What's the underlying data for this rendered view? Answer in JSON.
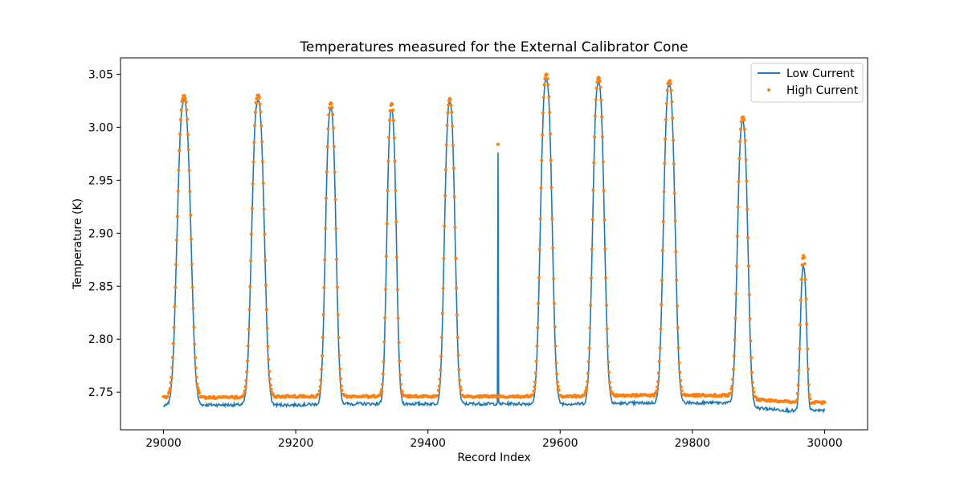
{
  "chart_data": {
    "type": "line",
    "title": "Temperatures measured for the External Calibrator Cone",
    "xlabel": "Record Index",
    "ylabel": "Temperature (K)",
    "xlim": [
      28935,
      30065
    ],
    "ylim": [
      2.7145,
      3.0655
    ],
    "x_ticks": [
      29000,
      29200,
      29400,
      29600,
      29800,
      30000
    ],
    "y_ticks": [
      2.75,
      2.8,
      2.85,
      2.9,
      2.95,
      3.0,
      3.05
    ],
    "x_tick_labels": [
      "29000",
      "29200",
      "29400",
      "29600",
      "29800",
      "30000"
    ],
    "y_tick_labels": [
      "2.75",
      "2.80",
      "2.85",
      "2.90",
      "2.95",
      "3.00",
      "3.05"
    ],
    "x_range": [
      29000,
      30000
    ],
    "legend_position": "top-right",
    "series": [
      {
        "name": "Low Current",
        "kind": "line",
        "color": "#1f77b4",
        "baseline": [
          [
            29000,
            2.737
          ],
          [
            29050,
            2.738
          ],
          [
            29100,
            2.738
          ],
          [
            29150,
            2.738
          ],
          [
            29200,
            2.738
          ],
          [
            29250,
            2.739
          ],
          [
            29350,
            2.739
          ],
          [
            29450,
            2.739
          ],
          [
            29550,
            2.739
          ],
          [
            29650,
            2.739
          ],
          [
            29750,
            2.74
          ],
          [
            29850,
            2.74
          ],
          [
            29880,
            2.738
          ],
          [
            29900,
            2.735
          ],
          [
            29960,
            2.732
          ],
          [
            30000,
            2.733
          ]
        ],
        "peaks": [
          {
            "x": 29031,
            "y": 3.025,
            "width": 13
          },
          {
            "x": 29143,
            "y": 3.025,
            "width": 12
          },
          {
            "x": 29253,
            "y": 3.017,
            "width": 10
          },
          {
            "x": 29345,
            "y": 3.016,
            "width": 9
          },
          {
            "x": 29433,
            "y": 3.023,
            "width": 10
          },
          {
            "x": 29506,
            "y": 2.977,
            "width": 1
          },
          {
            "x": 29579,
            "y": 3.045,
            "width": 11
          },
          {
            "x": 29658,
            "y": 3.043,
            "width": 11
          },
          {
            "x": 29765,
            "y": 3.04,
            "width": 11
          },
          {
            "x": 29876,
            "y": 3.005,
            "width": 10
          },
          {
            "x": 29968,
            "y": 2.868,
            "width": 6
          }
        ]
      },
      {
        "name": "High Current",
        "kind": "scatter",
        "color": "#ff7f0e",
        "baseline": [
          [
            29000,
            2.745
          ],
          [
            29100,
            2.745
          ],
          [
            29200,
            2.746
          ],
          [
            29300,
            2.746
          ],
          [
            29400,
            2.746
          ],
          [
            29500,
            2.746
          ],
          [
            29600,
            2.746
          ],
          [
            29700,
            2.747
          ],
          [
            29800,
            2.747
          ],
          [
            29870,
            2.747
          ],
          [
            29890,
            2.745
          ],
          [
            29900,
            2.743
          ],
          [
            29960,
            2.74
          ],
          [
            30000,
            2.74
          ]
        ],
        "peaks": [
          {
            "x": 29031,
            "y": 3.03,
            "width": 13
          },
          {
            "x": 29143,
            "y": 3.03,
            "width": 12
          },
          {
            "x": 29253,
            "y": 3.023,
            "width": 10
          },
          {
            "x": 29345,
            "y": 3.022,
            "width": 9
          },
          {
            "x": 29433,
            "y": 3.026,
            "width": 10
          },
          {
            "x": 29506,
            "y": 2.983,
            "width": 1
          },
          {
            "x": 29579,
            "y": 3.05,
            "width": 11
          },
          {
            "x": 29658,
            "y": 3.047,
            "width": 11
          },
          {
            "x": 29765,
            "y": 3.044,
            "width": 11
          },
          {
            "x": 29876,
            "y": 3.01,
            "width": 10
          },
          {
            "x": 29968,
            "y": 2.878,
            "width": 6
          }
        ]
      }
    ]
  }
}
